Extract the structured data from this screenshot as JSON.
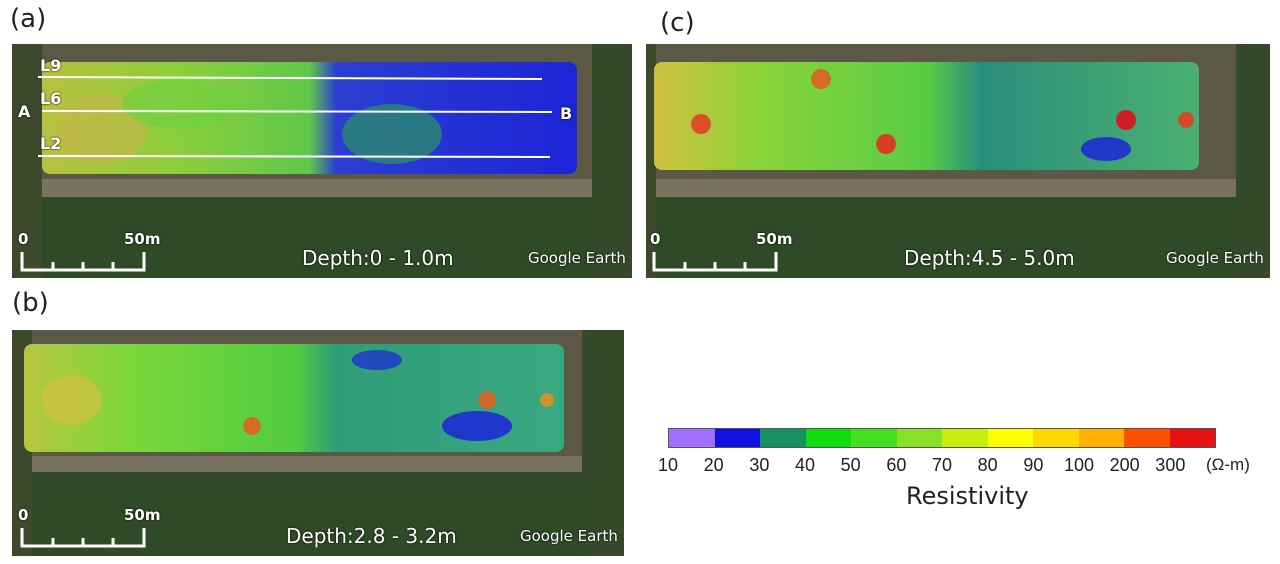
{
  "panels": [
    {
      "id": "a",
      "label": "(a)",
      "depth": "Depth:0 - 1.0m",
      "credit": "Google Earth",
      "scale_start": "0",
      "scale_end": "50m",
      "lines": [
        {
          "name": "L9"
        },
        {
          "name": "L6"
        },
        {
          "name": "L2"
        }
      ],
      "endpoints": {
        "start": "A",
        "end": "B"
      }
    },
    {
      "id": "b",
      "label": "(b)",
      "depth": "Depth:2.8 - 3.2m",
      "credit": "Google Earth",
      "scale_start": "0",
      "scale_end": "50m"
    },
    {
      "id": "c",
      "label": "(c)",
      "depth": "Depth:4.5 - 5.0m",
      "credit": "Google Earth",
      "scale_start": "0",
      "scale_end": "50m"
    }
  ],
  "legend": {
    "title": "Resistivity",
    "unit": "(Ω-m)",
    "ticks": [
      "10",
      "20",
      "30",
      "40",
      "50",
      "60",
      "70",
      "80",
      "90",
      "100",
      "200",
      "300"
    ],
    "colors": [
      "#a070ff",
      "#1010e0",
      "#159060",
      "#10dd10",
      "#44e020",
      "#88e028",
      "#c8ee10",
      "#ffff00",
      "#ffd800",
      "#ffb000",
      "#ff5000",
      "#e81010"
    ]
  }
}
